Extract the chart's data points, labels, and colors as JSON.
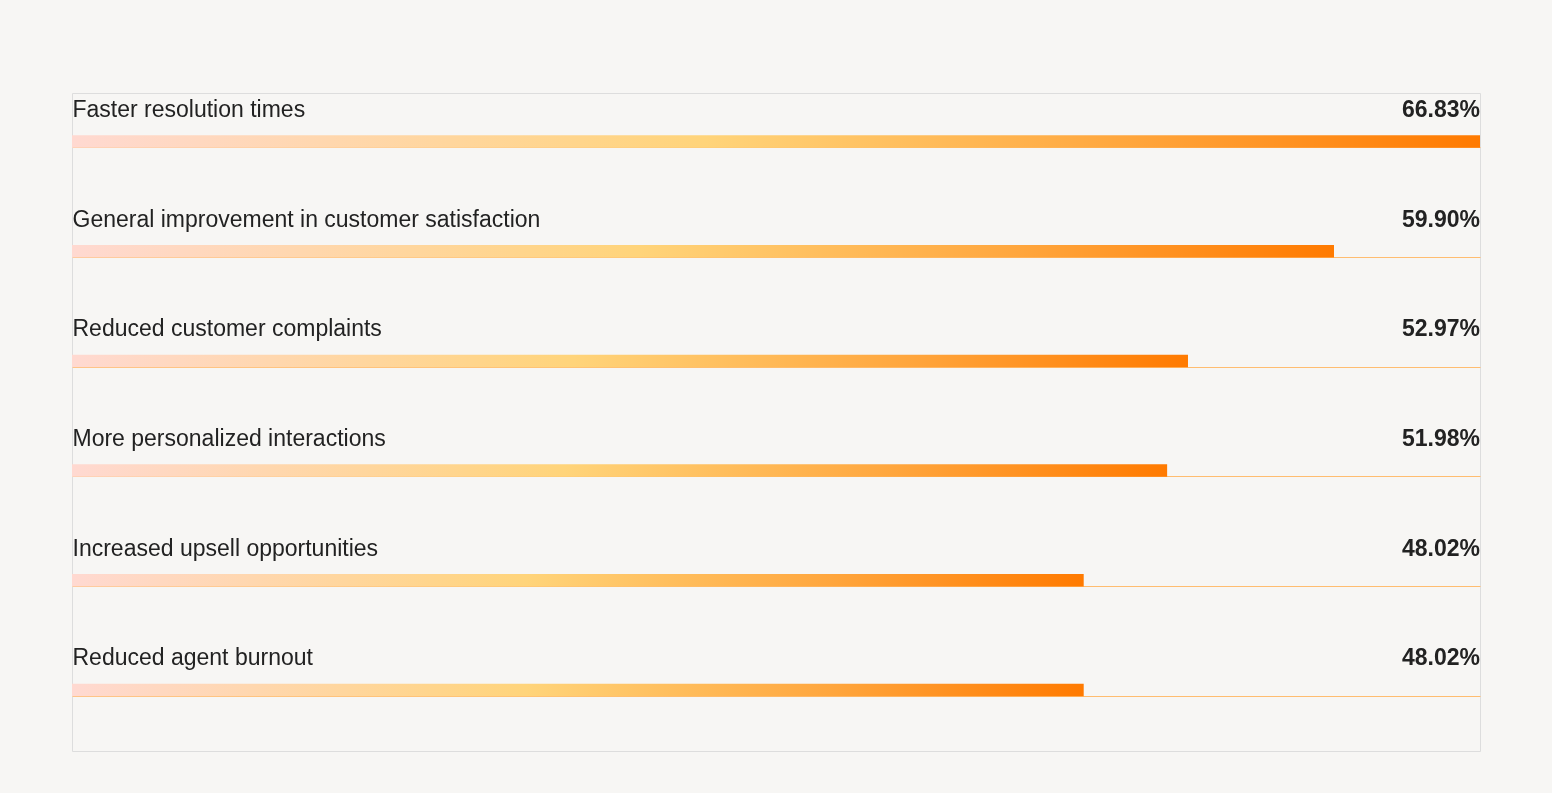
{
  "chart_data": {
    "type": "bar",
    "orientation": "horizontal",
    "categories": [
      "Faster resolution times",
      "General improvement in customer satisfaction",
      "Reduced customer complaints",
      "More personalized interactions",
      "Increased upsell opportunities",
      "Reduced agent burnout"
    ],
    "values": [
      66.83,
      59.9,
      52.97,
      51.98,
      48.02,
      48.02
    ],
    "value_labels": [
      "66.83%",
      "59.90%",
      "52.97%",
      "51.98%",
      "48.02%",
      "48.02%"
    ],
    "color": "#ff7a00",
    "grid": "y"
  }
}
